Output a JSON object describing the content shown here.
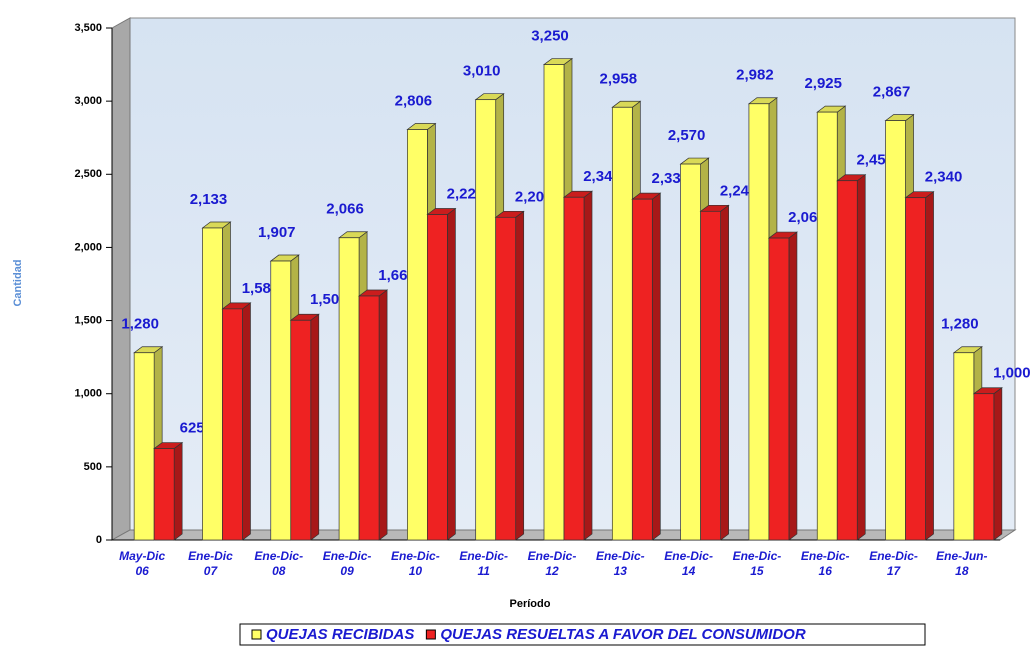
{
  "chart_data": {
    "type": "bar",
    "categories": [
      "May-Dic\n06",
      "Ene-Dic\n07",
      "Ene-Dic-\n08",
      "Ene-Dic-\n09",
      "Ene-Dic-\n10",
      "Ene-Dic-\n11",
      "Ene-Dic-\n12",
      "Ene-Dic-\n13",
      "Ene-Dic-\n14",
      "Ene-Dic-\n15",
      "Ene-Dic-\n16",
      "Ene-Dic-\n17",
      "Ene-Jun-\n18"
    ],
    "series": [
      {
        "name": "QUEJAS RECIBIDAS",
        "color": "#ffff66",
        "values": [
          1280,
          2133,
          1907,
          2066,
          2806,
          3010,
          3250,
          2958,
          2570,
          2982,
          2925,
          2867,
          1280
        ],
        "value_labels": [
          "1,280",
          "2,133",
          "1,907",
          "2,066",
          "2,806",
          "3,010",
          "3,250",
          "2,958",
          "2,570",
          "2,982",
          "2,925",
          "2,867",
          "1,280"
        ]
      },
      {
        "name": "QUEJAS RESUELTAS A FAVOR DEL CONSUMIDOR",
        "color": "#ee2222",
        "values": [
          625,
          1580,
          1502,
          1668,
          2225,
          2206,
          2343,
          2330,
          2247,
          2064,
          2456,
          2340,
          1000
        ],
        "value_labels": [
          "625",
          "1,580",
          "1,502",
          "1,668",
          "2,225",
          "2,206",
          "2,343",
          "2,330",
          "2,247",
          "2,064",
          "2,456",
          "2,340",
          "1,000"
        ]
      }
    ],
    "xlabel": "Período",
    "ylabel": "Cantidad",
    "ylim": [
      0,
      3500
    ],
    "yticks": [
      0,
      500,
      {
        "value": 1000,
        "label": "1,000"
      },
      {
        "value": 1500,
        "label": "1,500"
      },
      {
        "value": 2000,
        "label": "2,000"
      },
      {
        "value": 2500,
        "label": "2,500"
      },
      {
        "value": 3000,
        "label": "3,000"
      },
      {
        "value": 3500,
        "label": "3,500"
      }
    ],
    "grid": false,
    "legend": "bottom"
  }
}
